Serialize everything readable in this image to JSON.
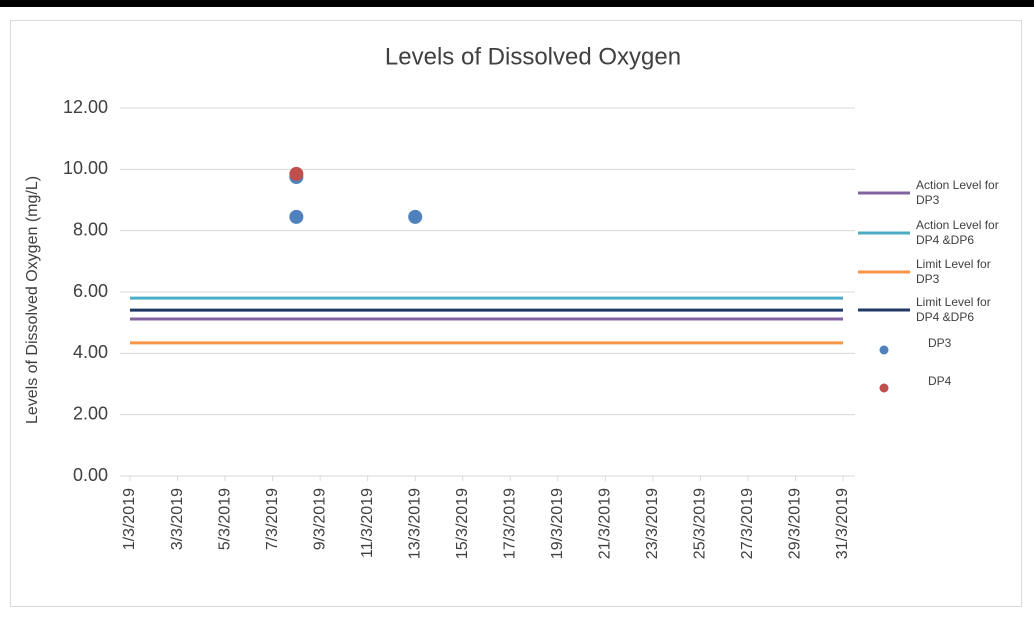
{
  "chart_data": {
    "type": "scatter",
    "title": "Levels of Dissolved Oxygen",
    "y_label": "Levels of Dissolved Oxygen (mg/L)",
    "xlim": [
      "2019-03-01",
      "2019-03-31"
    ],
    "xticks": [
      {
        "value": "2019-03-01",
        "label": "1/3/2019"
      },
      {
        "value": "2019-03-03",
        "label": "3/3/2019"
      },
      {
        "value": "2019-03-05",
        "label": "5/3/2019"
      },
      {
        "value": "2019-03-07",
        "label": "7/3/2019"
      },
      {
        "value": "2019-03-09",
        "label": "9/3/2019"
      },
      {
        "value": "2019-03-11",
        "label": "11/3/2019"
      },
      {
        "value": "2019-03-13",
        "label": "13/3/2019"
      },
      {
        "value": "2019-03-15",
        "label": "15/3/2019"
      },
      {
        "value": "2019-03-17",
        "label": "17/3/2019"
      },
      {
        "value": "2019-03-19",
        "label": "19/3/2019"
      },
      {
        "value": "2019-03-21",
        "label": "21/3/2019"
      },
      {
        "value": "2019-03-23",
        "label": "23/3/2019"
      },
      {
        "value": "2019-03-25",
        "label": "25/3/2019"
      },
      {
        "value": "2019-03-27",
        "label": "27/3/2019"
      },
      {
        "value": "2019-03-29",
        "label": "29/3/2019"
      },
      {
        "value": "2019-03-31",
        "label": "31/3/2019"
      }
    ],
    "ylim": [
      0,
      12
    ],
    "yticks": [
      {
        "value": 0,
        "label": "0.00"
      },
      {
        "value": 2,
        "label": "2.00"
      },
      {
        "value": 4,
        "label": "4.00"
      },
      {
        "value": 6,
        "label": "6.00"
      },
      {
        "value": 8,
        "label": "8.00"
      },
      {
        "value": 10,
        "label": "10.00"
      },
      {
        "value": 12,
        "label": "12.00"
      }
    ],
    "grid": true,
    "legend": "right",
    "series": [
      {
        "name": "Action Level for DP3",
        "kind": "line",
        "color": "#8064a2",
        "x": [
          "2019-03-01",
          "2019-03-31"
        ],
        "values": [
          5.12,
          5.12
        ]
      },
      {
        "name": "Action Level for DP4 &DP6",
        "kind": "line",
        "color": "#4bacc6",
        "x": [
          "2019-03-01",
          "2019-03-31"
        ],
        "values": [
          5.8,
          5.8
        ]
      },
      {
        "name": "Limit Level for DP3",
        "kind": "line",
        "color": "#f79646",
        "x": [
          "2019-03-01",
          "2019-03-31"
        ],
        "values": [
          4.34,
          4.34
        ]
      },
      {
        "name": "Limit Level for DP4 &DP6",
        "kind": "line",
        "color": "#1f3864",
        "x": [
          "2019-03-01",
          "2019-03-31"
        ],
        "values": [
          5.41,
          5.41
        ]
      },
      {
        "name": "DP3",
        "kind": "marker",
        "color": "#4f81bd",
        "x": [
          "2019-03-08",
          "2019-03-08",
          "2019-03-13"
        ],
        "values": [
          9.75,
          8.45,
          8.45
        ]
      },
      {
        "name": "DP4",
        "kind": "marker",
        "color": "#c0504d",
        "x": [
          "2019-03-08"
        ],
        "values": [
          9.85
        ]
      }
    ]
  }
}
